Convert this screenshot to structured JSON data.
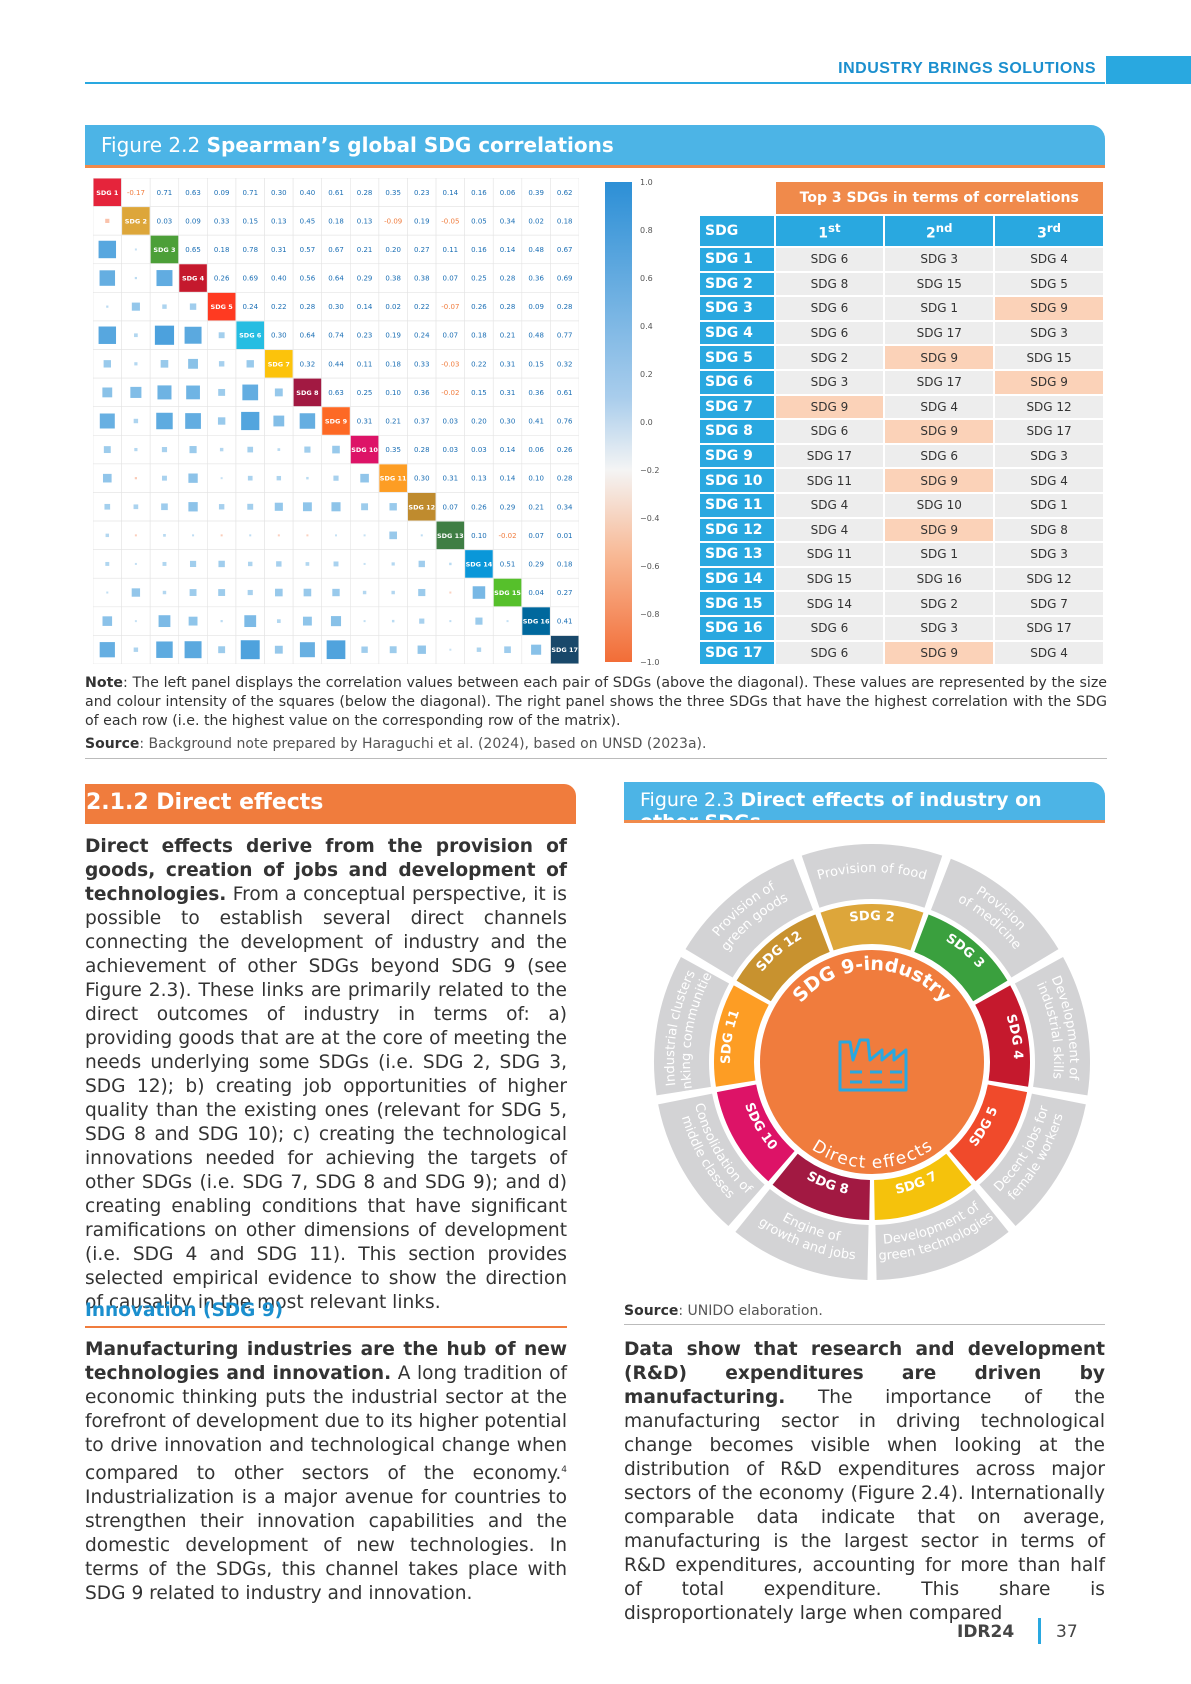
{
  "header": {
    "title": "INDUSTRY BRINGS SOLUTIONS"
  },
  "figure22": {
    "label": "Figure 2.2",
    "title": "Spearman’s global SDG correlations",
    "sdg_labels": [
      "SDG 1",
      "SDG 2",
      "SDG 3",
      "SDG 4",
      "SDG 5",
      "SDG 6",
      "SDG 7",
      "SDG 8",
      "SDG 9",
      "SDG 10",
      "SDG 11",
      "SDG 12",
      "SDG 13",
      "SDG 14",
      "SDG 15",
      "SDG 16",
      "SDG 17"
    ],
    "sdg_colors": [
      "#e5243b",
      "#dda63a",
      "#4c9f38",
      "#c5192d",
      "#ff3a21",
      "#26bde2",
      "#fcc30b",
      "#a21942",
      "#fd6925",
      "#dd1367",
      "#fd9d24",
      "#bf8b2e",
      "#3f7e44",
      "#0a97d9",
      "#56c02b",
      "#00689d",
      "#19486a"
    ],
    "upper_values": [
      [
        "-0.17",
        "0.71",
        "0.63",
        "0.09",
        "0.71",
        "0.30",
        "0.40",
        "0.61",
        "0.28",
        "0.35",
        "0.23",
        "0.14",
        "0.16",
        "0.06",
        "0.39",
        "0.62"
      ],
      [
        "0.03",
        "0.09",
        "0.33",
        "0.15",
        "0.13",
        "0.45",
        "0.18",
        "0.13",
        "-0.09",
        "0.19",
        "-0.05",
        "0.05",
        "0.34",
        "0.02",
        "0.18"
      ],
      [
        "0.65",
        "0.18",
        "0.78",
        "0.31",
        "0.57",
        "0.67",
        "0.21",
        "0.20",
        "0.27",
        "0.11",
        "0.16",
        "0.14",
        "0.48",
        "0.67"
      ],
      [
        "0.26",
        "0.69",
        "0.40",
        "0.56",
        "0.64",
        "0.29",
        "0.38",
        "0.38",
        "0.07",
        "0.25",
        "0.28",
        "0.36",
        "0.69"
      ],
      [
        "0.24",
        "0.22",
        "0.28",
        "0.30",
        "0.14",
        "0.02",
        "0.22",
        "-0.07",
        "0.26",
        "0.28",
        "0.09",
        "0.28"
      ],
      [
        "0.30",
        "0.64",
        "0.74",
        "0.23",
        "0.19",
        "0.24",
        "0.07",
        "0.18",
        "0.21",
        "0.48",
        "0.77"
      ],
      [
        "0.32",
        "0.44",
        "0.11",
        "0.18",
        "0.33",
        "-0.03",
        "0.22",
        "0.31",
        "0.15",
        "0.32"
      ],
      [
        "0.63",
        "0.25",
        "0.10",
        "0.36",
        "-0.02",
        "0.15",
        "0.31",
        "0.36",
        "0.61"
      ],
      [
        "0.31",
        "0.21",
        "0.37",
        "0.03",
        "0.20",
        "0.30",
        "0.41",
        "0.76"
      ],
      [
        "0.35",
        "0.28",
        "0.03",
        "0.03",
        "0.14",
        "0.06",
        "0.26"
      ],
      [
        "0.30",
        "0.31",
        "0.13",
        "0.14",
        "0.10",
        "0.28"
      ],
      [
        "0.07",
        "0.26",
        "0.29",
        "0.21",
        "0.34"
      ],
      [
        "0.10",
        "-0.02",
        "0.07",
        "0.01"
      ],
      [
        "0.51",
        "0.29",
        "0.18"
      ],
      [
        "0.04",
        "0.27"
      ],
      [
        "0.41"
      ]
    ],
    "colorbar_ticks": [
      "1.0",
      "0.8",
      "0.6",
      "0.4",
      "0.2",
      "0.0",
      "−0.2",
      "−0.4",
      "−0.6",
      "−0.8",
      "−1.0"
    ],
    "top3": {
      "title": "Top 3 SDGs in terms of correlations",
      "col_sdg": "SDG",
      "col1": "1",
      "col1_sup": "st",
      "col2": "2",
      "col2_sup": "nd",
      "col3": "3",
      "col3_sup": "rd",
      "rows": [
        {
          "sdg": "SDG 1",
          "c": [
            "SDG  6",
            "SDG  3",
            "SDG  4"
          ],
          "hl": [
            0,
            0,
            0
          ]
        },
        {
          "sdg": "SDG 2",
          "c": [
            "SDG  8",
            "SDG  15",
            "SDG  5"
          ],
          "hl": [
            0,
            0,
            0
          ]
        },
        {
          "sdg": "SDG 3",
          "c": [
            "SDG  6",
            "SDG  1",
            "SDG  9"
          ],
          "hl": [
            0,
            0,
            1
          ]
        },
        {
          "sdg": "SDG 4",
          "c": [
            "SDG  6",
            "SDG  17",
            "SDG  3"
          ],
          "hl": [
            0,
            0,
            0
          ]
        },
        {
          "sdg": "SDG 5",
          "c": [
            "SDG 2",
            "SDG 9",
            "SDG 15"
          ],
          "hl": [
            0,
            1,
            0
          ]
        },
        {
          "sdg": "SDG 6",
          "c": [
            "SDG 3",
            "SDG 17",
            "SDG 9"
          ],
          "hl": [
            0,
            0,
            1
          ]
        },
        {
          "sdg": "SDG 7",
          "c": [
            "SDG 9",
            "SDG 4",
            "SDG 12"
          ],
          "hl": [
            1,
            0,
            0
          ]
        },
        {
          "sdg": "SDG 8",
          "c": [
            "SDG 6",
            "SDG 9",
            "SDG 17"
          ],
          "hl": [
            0,
            1,
            0
          ]
        },
        {
          "sdg": "SDG 9",
          "c": [
            "SDG 17",
            "SDG 6",
            "SDG 3"
          ],
          "hl": [
            0,
            0,
            0
          ]
        },
        {
          "sdg": "SDG 10",
          "c": [
            "SDG 11",
            "SDG 9",
            "SDG 4"
          ],
          "hl": [
            0,
            1,
            0
          ]
        },
        {
          "sdg": "SDG 11",
          "c": [
            "SDG 4",
            "SDG 10",
            "SDG 1"
          ],
          "hl": [
            0,
            0,
            0
          ]
        },
        {
          "sdg": "SDG 12",
          "c": [
            "SDG 4",
            "SDG 9",
            "SDG 8"
          ],
          "hl": [
            0,
            1,
            0
          ]
        },
        {
          "sdg": "SDG 13",
          "c": [
            "SDG 11",
            "SDG 1",
            "SDG 3"
          ],
          "hl": [
            0,
            0,
            0
          ]
        },
        {
          "sdg": "SDG 14",
          "c": [
            "SDG 15",
            "SDG 16",
            "SDG 12"
          ],
          "hl": [
            0,
            0,
            0
          ]
        },
        {
          "sdg": "SDG 15",
          "c": [
            "SDG 14",
            "SDG 2",
            "SDG 7"
          ],
          "hl": [
            0,
            0,
            0
          ]
        },
        {
          "sdg": "SDG 16",
          "c": [
            "SDG 6",
            "SDG 3",
            "SDG 17"
          ],
          "hl": [
            0,
            0,
            0
          ]
        },
        {
          "sdg": "SDG 17",
          "c": [
            "SDG 6",
            "SDG 9",
            "SDG 4"
          ],
          "hl": [
            0,
            1,
            0
          ]
        }
      ]
    },
    "note_label": "Note",
    "note_text": ": The left panel displays the correlation values between each pair of SDGs (above the diagonal). These values are represented by the size and colour intensity of the squares (below the diagonal). The right panel shows the three SDGs that have the highest correlation with the SDG of each row (i.e. the highest value on the corresponding row of the matrix).",
    "source_label": "Source",
    "source_text": ": Background note prepared by Haraguchi et al. (2024), based on UNSD (2023a)."
  },
  "section": {
    "title": "2.1.2 Direct effects",
    "para1_bold": "Direct effects derive from the provision of goods, creation of jobs and development of technologies.",
    "para1_text": " From a conceptual perspective, it is possible to establish several direct channels connecting the development of industry and the achievement of other SDGs beyond SDG 9 (see Figure 2.3). These links are primarily related to the direct outcomes of industry in terms of: a) providing goods that are at the core of meeting the needs underlying some SDGs (i.e. SDG 2, SDG 3, SDG 12); b) creating job opportunities of higher quality than the existing ones (relevant for SDG 5, SDG 8 and SDG 10); c) creating the technological innovations needed for achieving the targets of other SDGs (i.e. SDG 7, SDG 8 and SDG 9); and d) creating enabling conditions that have significant ramifications on other dimensions of development (i.e. SDG 4 and SDG 11). This section provides selected empirical evidence to show the direction of causality in the most relevant links.",
    "subhead": "Innovation (SDG 9)",
    "para2_bold": "Manufacturing industries are the hub of new technologies and innovation.",
    "para2_text": " A long tradition of economic thinking puts the industrial sector at the forefront of development due to its higher potential to drive innovation and technological change when compared to other sectors of the economy.",
    "para2_sup": "4",
    "para2_text2": " Industrialization is a major avenue for countries to strengthen their innovation capabilities and the domestic development of new technologies. In terms of the SDGs, this channel takes place with SDG 9 related to industry and innovation.",
    "para3_bold": "Data show that research and development (R&D) expenditures are driven by manufacturing.",
    "para3_text": " The importance of the manufacturing sector in driving technological change becomes visible when looking at the distribution of R&D expenditures across major sectors of the economy (Figure 2.4). Internationally comparable data indicate that on average, manufacturing is the largest sector in terms of R&D expenditures, accounting for more than half of total expenditure. This share is disproportionately large when compared"
  },
  "figure23": {
    "label": "Figure 2.3",
    "title": "Direct effects of industry on other SDGs",
    "center_top": "SDG 9-industry",
    "center_bottom": "Direct effects",
    "inner": [
      {
        "label": "SDG 2",
        "color": "#dda63a"
      },
      {
        "label": "SDG 3",
        "color": "#3aa03e"
      },
      {
        "label": "SDG 4",
        "color": "#c5192d"
      },
      {
        "label": "SDG 5",
        "color": "#f04a2b"
      },
      {
        "label": "SDG 7",
        "color": "#f5c20c"
      },
      {
        "label": "SDG 8",
        "color": "#a21942"
      },
      {
        "label": "SDG 10",
        "color": "#dd1367"
      },
      {
        "label": "SDG 11",
        "color": "#fd9d24"
      },
      {
        "label": "SDG 12",
        "color": "#c8922f"
      }
    ],
    "outer": [
      {
        "l1": "Provision of food",
        "l2": ""
      },
      {
        "l1": "Provision",
        "l2": "of medicine"
      },
      {
        "l1": "Development of",
        "l2": "industrial skills"
      },
      {
        "l1": "Decent jobs for",
        "l2": "female workers"
      },
      {
        "l1": "Development of",
        "l2": "green technologies"
      },
      {
        "l1": "Engine of",
        "l2": "growth and jobs"
      },
      {
        "l1": "Consolidation of",
        "l2": "middle classes"
      },
      {
        "l1": "Industrial clusters",
        "l2": "linking communities"
      },
      {
        "l1": "Provision of",
        "l2": "green goods"
      }
    ],
    "source_label": "Source",
    "source_text": ": UNIDO elaboration."
  },
  "footer": {
    "report": "IDR24",
    "page": "37"
  }
}
